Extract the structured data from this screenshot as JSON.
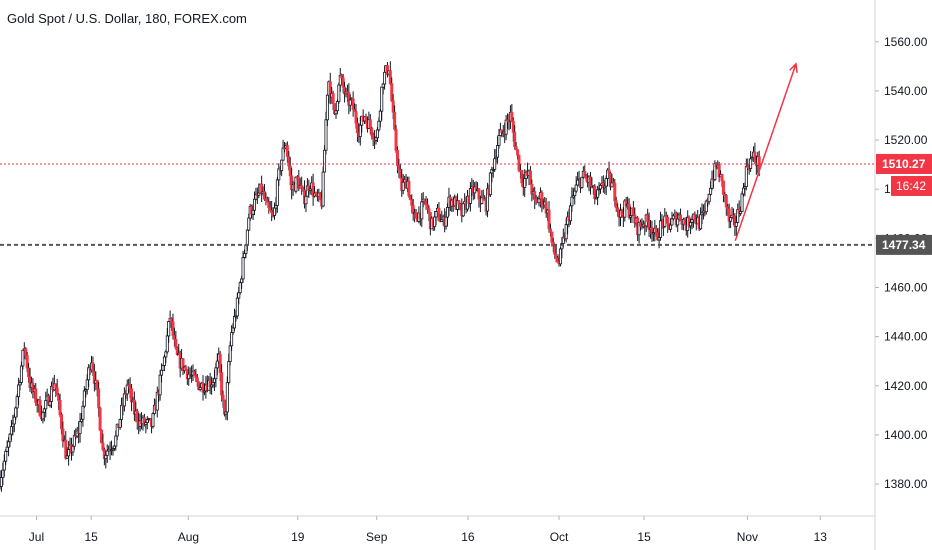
{
  "title": "Gold Spot / U.S. Dollar, 180, FOREX.com",
  "chart_data": {
    "type": "candlestick",
    "title": "Gold Spot / U.S. Dollar, 180, FOREX.com",
    "y_ticks": [
      "1380.00",
      "1400.00",
      "1420.00",
      "1440.00",
      "1460.00",
      "1480.00",
      "1500.00",
      "1520.00",
      "1540.00",
      "1560.00"
    ],
    "ylim": [
      1367,
      1577
    ],
    "x_ticks": [
      {
        "label": "Jul",
        "day": 6
      },
      {
        "label": "15",
        "day": 15
      },
      {
        "label": "Aug",
        "day": 31
      },
      {
        "label": "19",
        "day": 49
      },
      {
        "label": "Sep",
        "day": 62
      },
      {
        "label": "16",
        "day": 77
      },
      {
        "label": "Oct",
        "day": 92
      },
      {
        "label": "15",
        "day": 106
      },
      {
        "label": "Nov",
        "day": 123
      },
      {
        "label": "13",
        "day": 135
      }
    ],
    "x_domain_days": [
      0,
      144
    ],
    "last_price": {
      "value": 1510.27,
      "label": "1510.27",
      "countdown": "16:42",
      "color": "#f23645"
    },
    "level_line": {
      "value": 1477.34,
      "label": "1477.34",
      "color": "#555555"
    },
    "arrow": {
      "from": {
        "day": 121,
        "price": 1479
      },
      "to": {
        "day": 131,
        "price": 1551
      },
      "color": "#f23645"
    },
    "colors": {
      "up": "#ffffff",
      "up_border": "#131722",
      "down": "#f23645",
      "down_wick": "#131722"
    },
    "closes": [
      {
        "day": 0,
        "price": 1382
      },
      {
        "day": 2,
        "price": 1402
      },
      {
        "day": 4,
        "price": 1436
      },
      {
        "day": 5,
        "price": 1420
      },
      {
        "day": 7,
        "price": 1408
      },
      {
        "day": 9,
        "price": 1422
      },
      {
        "day": 11,
        "price": 1390
      },
      {
        "day": 13,
        "price": 1402
      },
      {
        "day": 15,
        "price": 1432
      },
      {
        "day": 16,
        "price": 1416
      },
      {
        "day": 17,
        "price": 1392
      },
      {
        "day": 19,
        "price": 1398
      },
      {
        "day": 21,
        "price": 1421
      },
      {
        "day": 22,
        "price": 1410
      },
      {
        "day": 23,
        "price": 1405
      },
      {
        "day": 25,
        "price": 1404
      },
      {
        "day": 27,
        "price": 1430
      },
      {
        "day": 28,
        "price": 1448
      },
      {
        "day": 29,
        "price": 1432
      },
      {
        "day": 31,
        "price": 1425
      },
      {
        "day": 33,
        "price": 1420
      },
      {
        "day": 35,
        "price": 1422
      },
      {
        "day": 36,
        "price": 1430
      },
      {
        "day": 37,
        "price": 1405
      },
      {
        "day": 38,
        "price": 1440
      },
      {
        "day": 39,
        "price": 1452
      },
      {
        "day": 40,
        "price": 1470
      },
      {
        "day": 41,
        "price": 1490
      },
      {
        "day": 43,
        "price": 1500
      },
      {
        "day": 44,
        "price": 1492
      },
      {
        "day": 45,
        "price": 1488
      },
      {
        "day": 46,
        "price": 1508
      },
      {
        "day": 47,
        "price": 1520
      },
      {
        "day": 48,
        "price": 1500
      },
      {
        "day": 49,
        "price": 1504
      },
      {
        "day": 50,
        "price": 1496
      },
      {
        "day": 51,
        "price": 1503
      },
      {
        "day": 52,
        "price": 1496
      },
      {
        "day": 53,
        "price": 1495
      },
      {
        "day": 54,
        "price": 1546
      },
      {
        "day": 55,
        "price": 1530
      },
      {
        "day": 56,
        "price": 1545
      },
      {
        "day": 57,
        "price": 1537
      },
      {
        "day": 58,
        "price": 1534
      },
      {
        "day": 59,
        "price": 1524
      },
      {
        "day": 60,
        "price": 1530
      },
      {
        "day": 61,
        "price": 1525
      },
      {
        "day": 62,
        "price": 1520
      },
      {
        "day": 63,
        "price": 1545
      },
      {
        "day": 64,
        "price": 1550
      },
      {
        "day": 65,
        "price": 1520
      },
      {
        "day": 66,
        "price": 1500
      },
      {
        "day": 67,
        "price": 1504
      },
      {
        "day": 68,
        "price": 1488
      },
      {
        "day": 69,
        "price": 1490
      },
      {
        "day": 70,
        "price": 1495
      },
      {
        "day": 71,
        "price": 1485
      },
      {
        "day": 72,
        "price": 1490
      },
      {
        "day": 73,
        "price": 1486
      },
      {
        "day": 74,
        "price": 1496
      },
      {
        "day": 75,
        "price": 1494
      },
      {
        "day": 76,
        "price": 1490
      },
      {
        "day": 77,
        "price": 1496
      },
      {
        "day": 78,
        "price": 1500
      },
      {
        "day": 79,
        "price": 1496
      },
      {
        "day": 80,
        "price": 1494
      },
      {
        "day": 81,
        "price": 1508
      },
      {
        "day": 82,
        "price": 1520
      },
      {
        "day": 83,
        "price": 1525
      },
      {
        "day": 84,
        "price": 1530
      },
      {
        "day": 85,
        "price": 1515
      },
      {
        "day": 86,
        "price": 1503
      },
      {
        "day": 87,
        "price": 1506
      },
      {
        "day": 88,
        "price": 1494
      },
      {
        "day": 89,
        "price": 1497
      },
      {
        "day": 90,
        "price": 1492
      },
      {
        "day": 91,
        "price": 1475
      },
      {
        "day": 92,
        "price": 1470
      },
      {
        "day": 93,
        "price": 1482
      },
      {
        "day": 94,
        "price": 1494
      },
      {
        "day": 95,
        "price": 1502
      },
      {
        "day": 96,
        "price": 1505
      },
      {
        "day": 97,
        "price": 1503
      },
      {
        "day": 98,
        "price": 1496
      },
      {
        "day": 99,
        "price": 1500
      },
      {
        "day": 100,
        "price": 1505
      },
      {
        "day": 101,
        "price": 1500
      },
      {
        "day": 102,
        "price": 1489
      },
      {
        "day": 103,
        "price": 1493
      },
      {
        "day": 104,
        "price": 1490
      },
      {
        "day": 105,
        "price": 1484
      },
      {
        "day": 106,
        "price": 1487
      },
      {
        "day": 107,
        "price": 1486
      },
      {
        "day": 108,
        "price": 1480
      },
      {
        "day": 109,
        "price": 1487
      },
      {
        "day": 110,
        "price": 1485
      },
      {
        "day": 111,
        "price": 1488
      },
      {
        "day": 112,
        "price": 1489
      },
      {
        "day": 113,
        "price": 1485
      },
      {
        "day": 114,
        "price": 1490
      },
      {
        "day": 115,
        "price": 1486
      },
      {
        "day": 116,
        "price": 1490
      },
      {
        "day": 117,
        "price": 1503
      },
      {
        "day": 118,
        "price": 1510
      },
      {
        "day": 119,
        "price": 1500
      },
      {
        "day": 120,
        "price": 1487
      },
      {
        "day": 121,
        "price": 1486
      },
      {
        "day": 122,
        "price": 1495
      },
      {
        "day": 123,
        "price": 1510
      },
      {
        "day": 124,
        "price": 1513
      },
      {
        "day": 125,
        "price": 1510
      }
    ]
  }
}
